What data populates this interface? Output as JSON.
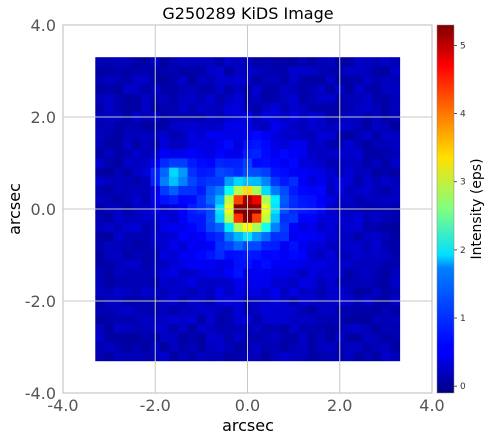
{
  "chart_data": {
    "type": "heatmap",
    "title": "G250289 KiDS Image",
    "xlabel": "arcsec",
    "ylabel": "arcsec",
    "xlim": [
      -4.0,
      4.0
    ],
    "ylim": [
      -4.0,
      4.0
    ],
    "xticks": [
      "-4.0",
      "-2.0",
      "0.0",
      "2.0",
      "4.0"
    ],
    "yticks": [
      "4.0",
      "2.0",
      "0.0",
      "-2.0",
      "-4.0"
    ],
    "image_extent": [
      -3.3,
      3.3,
      -3.3,
      3.3
    ],
    "grid_size": 33,
    "grid": true,
    "colormap": "jet",
    "colorbar": {
      "label": "Intensity (eps)",
      "ticks": [
        "0",
        "1",
        "2",
        "3",
        "4",
        "5"
      ],
      "range": [
        -0.1,
        5.3
      ]
    },
    "sources": [
      {
        "x": 0.0,
        "y": 0.0,
        "peak": 5.2,
        "sigma": 0.32,
        "halo_amp": 0.8,
        "halo_sigma": 1.1
      },
      {
        "x": -1.6,
        "y": 0.7,
        "peak": 1.3,
        "sigma": 0.25
      }
    ],
    "background": 0.18
  }
}
